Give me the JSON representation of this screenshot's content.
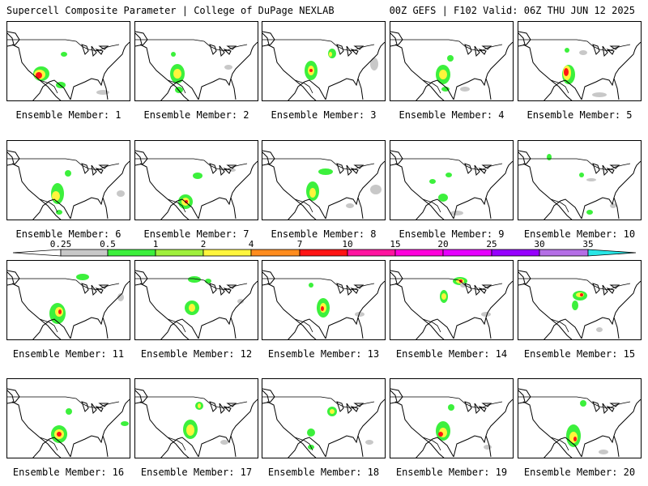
{
  "header": {
    "title_left": "Supercell Composite Parameter | College of DuPage NEXLAB",
    "title_right": "00Z GEFS | F102 Valid: 06Z THU JUN 12 2025"
  },
  "caption_prefix": "Ensemble Member: ",
  "colorbar": {
    "ticks": [
      "0.25",
      "0.5",
      "1",
      "2",
      "4",
      "7",
      "10",
      "15",
      "20",
      "25",
      "30",
      "35"
    ],
    "colors": [
      "#ffffff",
      "#c8c8c8",
      "#3cf03c",
      "#a0f03c",
      "#fff53c",
      "#ff8c1e",
      "#ff1414",
      "#ff14a0",
      "#ff00dc",
      "#e600ff",
      "#9600ff",
      "#b46ee6",
      "#28e6e6"
    ]
  },
  "members": [
    {
      "number": "1",
      "blobs": [
        [
          42,
          64,
          10,
          9,
          "#3cf03c"
        ],
        [
          40,
          65,
          7,
          6,
          "#fff53c"
        ],
        [
          39,
          66,
          4,
          4,
          "#ff1414"
        ],
        [
          66,
          78,
          6,
          4,
          "#3cf03c"
        ],
        [
          70,
          40,
          4,
          3,
          "#3cf03c"
        ],
        [
          118,
          87,
          8,
          3,
          "#c8c8c8"
        ]
      ]
    },
    {
      "number": "2",
      "blobs": [
        [
          52,
          64,
          9,
          12,
          "#3cf03c"
        ],
        [
          52,
          64,
          5,
          6,
          "#fff53c"
        ],
        [
          54,
          84,
          5,
          4,
          "#3cf03c"
        ],
        [
          47,
          40,
          3,
          3,
          "#3cf03c"
        ],
        [
          115,
          56,
          5,
          3,
          "#c8c8c8"
        ]
      ]
    },
    {
      "number": "3",
      "blobs": [
        [
          60,
          60,
          8,
          12,
          "#3cf03c"
        ],
        [
          60,
          60,
          4,
          6,
          "#fff53c"
        ],
        [
          60,
          60,
          2,
          2,
          "#ff1414"
        ],
        [
          86,
          39,
          5,
          6,
          "#3cf03c"
        ],
        [
          84,
          40,
          2,
          3,
          "#fff53c"
        ],
        [
          138,
          52,
          5,
          8,
          "#c8c8c8"
        ]
      ]
    },
    {
      "number": "4",
      "blobs": [
        [
          65,
          65,
          9,
          12,
          "#3cf03c"
        ],
        [
          65,
          65,
          5,
          6,
          "#fff53c"
        ],
        [
          74,
          45,
          4,
          4,
          "#3cf03c"
        ],
        [
          68,
          83,
          5,
          3,
          "#3cf03c"
        ],
        [
          92,
          83,
          6,
          3,
          "#c8c8c8"
        ]
      ]
    },
    {
      "number": "5",
      "blobs": [
        [
          62,
          65,
          8,
          12,
          "#3cf03c"
        ],
        [
          60,
          63,
          5,
          9,
          "#fff53c"
        ],
        [
          59,
          62,
          3,
          5,
          "#ff1414"
        ],
        [
          60,
          35,
          3,
          3,
          "#3cf03c"
        ],
        [
          80,
          38,
          5,
          3,
          "#c8c8c8"
        ],
        [
          100,
          90,
          9,
          3,
          "#c8c8c8"
        ]
      ]
    },
    {
      "number": "6",
      "blobs": [
        [
          62,
          65,
          8,
          13,
          "#3cf03c"
        ],
        [
          60,
          68,
          5,
          6,
          "#fff53c"
        ],
        [
          75,
          40,
          4,
          4,
          "#3cf03c"
        ],
        [
          64,
          88,
          4,
          3,
          "#3cf03c"
        ],
        [
          140,
          65,
          5,
          4,
          "#c8c8c8"
        ]
      ]
    },
    {
      "number": "7",
      "blobs": [
        [
          62,
          75,
          9,
          9,
          "#3cf03c"
        ],
        [
          62,
          75,
          5,
          5,
          "#fff53c"
        ],
        [
          63,
          75,
          2,
          2,
          "#ff1414"
        ],
        [
          77,
          43,
          6,
          4,
          "#3cf03c"
        ],
        [
          120,
          36,
          4,
          2,
          "#c8c8c8"
        ]
      ]
    },
    {
      "number": "8",
      "blobs": [
        [
          62,
          62,
          8,
          12,
          "#3cf03c"
        ],
        [
          62,
          64,
          4,
          6,
          "#fff53c"
        ],
        [
          78,
          38,
          9,
          4,
          "#3cf03c"
        ],
        [
          108,
          80,
          5,
          3,
          "#c8c8c8"
        ],
        [
          140,
          60,
          7,
          6,
          "#c8c8c8"
        ]
      ]
    },
    {
      "number": "9",
      "blobs": [
        [
          65,
          70,
          6,
          5,
          "#3cf03c"
        ],
        [
          72,
          42,
          4,
          3,
          "#3cf03c"
        ],
        [
          52,
          50,
          4,
          3,
          "#3cf03c"
        ],
        [
          82,
          89,
          8,
          3,
          "#c8c8c8"
        ]
      ]
    },
    {
      "number": "10",
      "blobs": [
        [
          38,
          20,
          3,
          4,
          "#3cf03c"
        ],
        [
          78,
          42,
          3,
          3,
          "#3cf03c"
        ],
        [
          90,
          48,
          6,
          2,
          "#c8c8c8"
        ],
        [
          88,
          88,
          4,
          3,
          "#3cf03c"
        ],
        [
          117,
          80,
          4,
          3,
          "#c8c8c8"
        ]
      ]
    },
    {
      "number": "11",
      "blobs": [
        [
          62,
          65,
          10,
          13,
          "#3cf03c"
        ],
        [
          64,
          63,
          5,
          6,
          "#fff53c"
        ],
        [
          65,
          63,
          2,
          3,
          "#ff1414"
        ],
        [
          93,
          20,
          8,
          4,
          "#3cf03c"
        ],
        [
          140,
          45,
          4,
          5,
          "#c8c8c8"
        ]
      ]
    },
    {
      "number": "12",
      "blobs": [
        [
          70,
          58,
          9,
          9,
          "#3cf03c"
        ],
        [
          70,
          58,
          4,
          5,
          "#fff53c"
        ],
        [
          73,
          23,
          8,
          4,
          "#3cf03c"
        ],
        [
          90,
          25,
          4,
          3,
          "#3cf03c"
        ],
        [
          130,
          50,
          4,
          3,
          "#c8c8c8"
        ]
      ]
    },
    {
      "number": "13",
      "blobs": [
        [
          75,
          58,
          8,
          12,
          "#3cf03c"
        ],
        [
          75,
          58,
          4,
          6,
          "#fff53c"
        ],
        [
          74,
          59,
          2,
          3,
          "#ff1414"
        ],
        [
          60,
          30,
          3,
          3,
          "#3cf03c"
        ],
        [
          120,
          66,
          6,
          3,
          "#c8c8c8"
        ]
      ]
    },
    {
      "number": "14",
      "blobs": [
        [
          86,
          25,
          9,
          5,
          "#3cf03c"
        ],
        [
          86,
          25,
          5,
          3,
          "#fff53c"
        ],
        [
          87,
          25,
          2,
          2,
          "#ff1414"
        ],
        [
          66,
          44,
          5,
          8,
          "#3cf03c"
        ],
        [
          66,
          44,
          3,
          4,
          "#fff53c"
        ],
        [
          90,
          30,
          4,
          3,
          "#c8c8c8"
        ],
        [
          118,
          66,
          6,
          3,
          "#c8c8c8"
        ]
      ]
    },
    {
      "number": "15",
      "blobs": [
        [
          76,
          43,
          9,
          6,
          "#3cf03c"
        ],
        [
          76,
          42,
          5,
          3,
          "#fff53c"
        ],
        [
          78,
          42,
          2,
          2,
          "#ff1414"
        ],
        [
          70,
          55,
          4,
          6,
          "#3cf03c"
        ],
        [
          100,
          85,
          4,
          3,
          "#c8c8c8"
        ]
      ]
    },
    {
      "number": "16",
      "blobs": [
        [
          64,
          68,
          10,
          11,
          "#3cf03c"
        ],
        [
          64,
          68,
          6,
          6,
          "#fff53c"
        ],
        [
          64,
          68,
          3,
          3,
          "#ff1414"
        ],
        [
          76,
          40,
          4,
          4,
          "#3cf03c"
        ],
        [
          145,
          55,
          5,
          3,
          "#3cf03c"
        ]
      ]
    },
    {
      "number": "17",
      "blobs": [
        [
          68,
          62,
          9,
          12,
          "#3cf03c"
        ],
        [
          68,
          63,
          5,
          7,
          "#fff53c"
        ],
        [
          79,
          33,
          5,
          5,
          "#3cf03c"
        ],
        [
          79,
          33,
          2,
          3,
          "#fff53c"
        ],
        [
          110,
          78,
          5,
          3,
          "#c8c8c8"
        ]
      ]
    },
    {
      "number": "18",
      "blobs": [
        [
          86,
          40,
          6,
          6,
          "#3cf03c"
        ],
        [
          86,
          40,
          3,
          3,
          "#fff53c"
        ],
        [
          60,
          66,
          5,
          5,
          "#3cf03c"
        ],
        [
          60,
          84,
          4,
          3,
          "#3cf03c"
        ],
        [
          132,
          78,
          5,
          3,
          "#c8c8c8"
        ]
      ]
    },
    {
      "number": "19",
      "blobs": [
        [
          65,
          64,
          9,
          12,
          "#3cf03c"
        ],
        [
          65,
          66,
          5,
          6,
          "#fff53c"
        ],
        [
          62,
          68,
          3,
          3,
          "#ff1414"
        ],
        [
          75,
          35,
          4,
          4,
          "#3cf03c"
        ],
        [
          120,
          84,
          5,
          3,
          "#c8c8c8"
        ]
      ]
    },
    {
      "number": "20",
      "blobs": [
        [
          68,
          70,
          9,
          14,
          "#3cf03c"
        ],
        [
          68,
          72,
          5,
          7,
          "#fff53c"
        ],
        [
          70,
          74,
          2,
          3,
          "#ff1414"
        ],
        [
          80,
          30,
          4,
          4,
          "#3cf03c"
        ],
        [
          105,
          90,
          6,
          3,
          "#c8c8c8"
        ]
      ]
    }
  ]
}
